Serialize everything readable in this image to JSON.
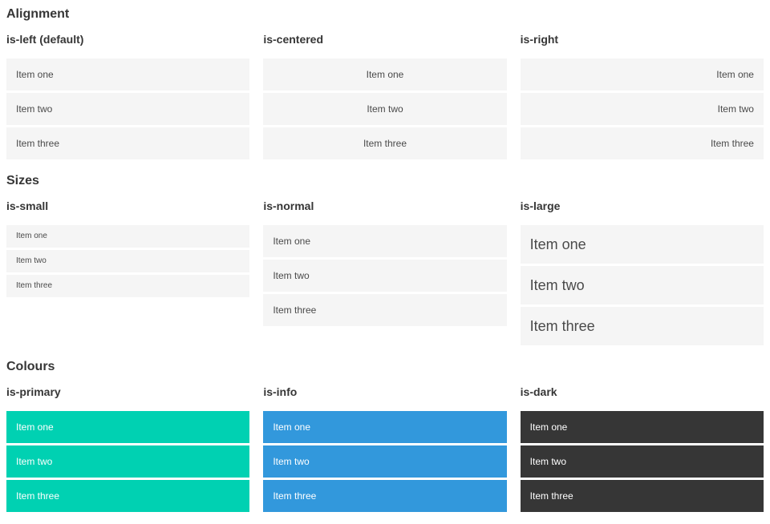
{
  "sections": [
    {
      "title": "Alignment",
      "columns": [
        {
          "subtitle": "is-left (default)",
          "items": [
            "Item one",
            "Item two",
            "Item three"
          ]
        },
        {
          "subtitle": "is-centered",
          "items": [
            "Item one",
            "Item two",
            "Item three"
          ]
        },
        {
          "subtitle": "is-right",
          "items": [
            "Item one",
            "Item two",
            "Item three"
          ]
        }
      ]
    },
    {
      "title": "Sizes",
      "columns": [
        {
          "subtitle": "is-small",
          "items": [
            "Item one",
            "Item two",
            "Item three"
          ]
        },
        {
          "subtitle": "is-normal",
          "items": [
            "Item one",
            "Item two",
            "Item three"
          ]
        },
        {
          "subtitle": "is-large",
          "items": [
            "Item one",
            "Item two",
            "Item three"
          ]
        }
      ]
    },
    {
      "title": "Colours",
      "columns": [
        {
          "subtitle": "is-primary",
          "items": [
            "Item one",
            "Item two",
            "Item three"
          ]
        },
        {
          "subtitle": "is-info",
          "items": [
            "Item one",
            "Item two",
            "Item three"
          ]
        },
        {
          "subtitle": "is-dark",
          "items": [
            "Item one",
            "Item two",
            "Item three"
          ]
        }
      ]
    }
  ],
  "colors": {
    "primary": "#00d1b2",
    "info": "#3298dc",
    "dark": "#363636",
    "item_background": "#f5f5f5",
    "item_text": "#4a4a4a",
    "heading_text": "#363636"
  }
}
